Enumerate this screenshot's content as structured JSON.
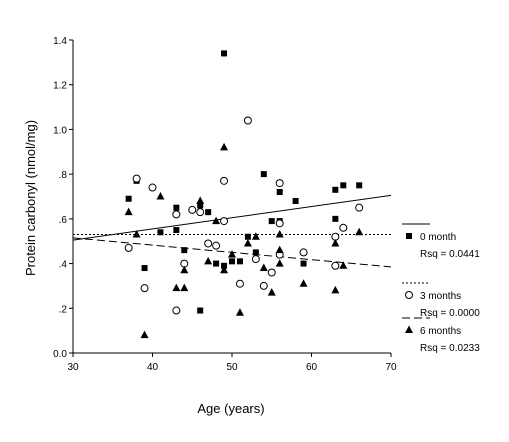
{
  "chart_data": {
    "type": "scatter",
    "title": "",
    "xlabel": "Age (years)",
    "ylabel": "Protein carbonyl (nmol/mg)",
    "xlim": [
      30,
      70
    ],
    "ylim": [
      0.0,
      1.4
    ],
    "x_ticks": [
      30,
      40,
      50,
      60,
      70
    ],
    "y_ticks": [
      0.0,
      0.2,
      0.4,
      0.6,
      0.8,
      1.0,
      1.2,
      1.4
    ],
    "x_tick_labels": [
      "30",
      "40",
      "50",
      "60",
      "70"
    ],
    "y_tick_labels": [
      "0.0",
      ".2",
      ".4",
      ".6",
      ".8",
      "1.0",
      "1.2",
      "1.4"
    ],
    "grid": false,
    "legend_position": "right",
    "series": [
      {
        "name": "0 month",
        "marker": "filled-square",
        "line_style": "solid",
        "rsq_label": "Rsq = 0.0441",
        "fit": {
          "x": [
            30,
            70
          ],
          "y": [
            0.505,
            0.705
          ]
        },
        "x": [
          37,
          38,
          39,
          41,
          43,
          43,
          44,
          46,
          46,
          47,
          48,
          49,
          49,
          50,
          51,
          52,
          53,
          54,
          55,
          56,
          56,
          58,
          59,
          63,
          63,
          64,
          66
        ],
        "y": [
          0.69,
          0.77,
          0.38,
          0.54,
          0.55,
          0.65,
          0.46,
          0.66,
          0.19,
          0.63,
          0.4,
          1.34,
          0.39,
          0.41,
          0.41,
          0.52,
          0.45,
          0.8,
          0.59,
          0.72,
          0.59,
          0.68,
          0.4,
          0.73,
          0.6,
          0.75,
          0.75
        ]
      },
      {
        "name": "3 months",
        "marker": "open-circle",
        "line_style": "dotted",
        "rsq_label": "Rsq = 0.0000",
        "fit": {
          "x": [
            30,
            70
          ],
          "y": [
            0.53,
            0.53
          ]
        },
        "x": [
          37,
          38,
          39,
          40,
          43,
          43,
          44,
          45,
          46,
          47,
          48,
          49,
          49,
          51,
          52,
          53,
          54,
          55,
          56,
          56,
          56,
          59,
          63,
          63,
          64,
          66
        ],
        "y": [
          0.47,
          0.78,
          0.29,
          0.74,
          0.62,
          0.19,
          0.4,
          0.64,
          0.63,
          0.49,
          0.48,
          0.77,
          0.59,
          0.31,
          1.04,
          0.42,
          0.3,
          0.36,
          0.76,
          0.44,
          0.58,
          0.45,
          0.52,
          0.39,
          0.56,
          0.65
        ]
      },
      {
        "name": "6 months",
        "marker": "filled-triangle",
        "line_style": "dashed",
        "rsq_label": "Rsq = 0.0233",
        "fit": {
          "x": [
            30,
            70
          ],
          "y": [
            0.515,
            0.385
          ]
        },
        "x": [
          37,
          38,
          39,
          41,
          43,
          44,
          44,
          46,
          47,
          48,
          49,
          49,
          50,
          51,
          52,
          53,
          54,
          55,
          56,
          56,
          56,
          59,
          63,
          63,
          64,
          66
        ],
        "y": [
          0.63,
          0.53,
          0.08,
          0.7,
          0.29,
          0.37,
          0.29,
          0.68,
          0.41,
          0.59,
          0.92,
          0.37,
          0.44,
          0.18,
          0.49,
          0.52,
          0.38,
          0.27,
          0.4,
          0.46,
          0.53,
          0.31,
          0.49,
          0.28,
          0.39,
          0.54
        ]
      }
    ]
  }
}
